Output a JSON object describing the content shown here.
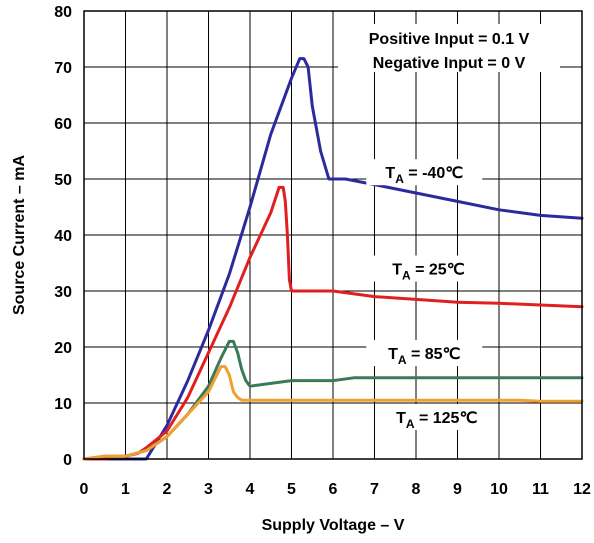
{
  "chart_data": {
    "type": "line",
    "xlabel": "Supply Voltage – V",
    "ylabel": "Source Current – mA",
    "xlim": [
      0,
      12
    ],
    "ylim": [
      0,
      80
    ],
    "xticks": [
      0,
      1,
      2,
      3,
      4,
      5,
      6,
      7,
      8,
      9,
      10,
      11,
      12
    ],
    "yticks": [
      0,
      10,
      20,
      30,
      40,
      50,
      60,
      70,
      80
    ],
    "grid": true,
    "annotations": [
      "Positive Input = 0.1 V",
      "Negative Input = 0 V"
    ],
    "series": [
      {
        "label_main": "T",
        "label_sub": "A",
        "label_rest": " = -40℃",
        "color": "#2b2b9e",
        "x": [
          0,
          0.5,
          1.0,
          1.3,
          1.5,
          2.0,
          2.5,
          3.0,
          3.5,
          4.0,
          4.5,
          5.0,
          5.2,
          5.3,
          5.4,
          5.5,
          5.7,
          5.9,
          6.0,
          6.3,
          7,
          8,
          9,
          10,
          11,
          12
        ],
        "y": [
          0,
          0,
          0,
          0,
          0,
          6,
          14,
          23,
          33,
          45,
          58,
          68,
          71.5,
          71.5,
          70,
          63,
          55,
          50,
          50,
          50,
          49,
          47.5,
          46,
          44.5,
          43.5,
          43
        ]
      },
      {
        "label_main": "T",
        "label_sub": "A",
        "label_rest": " = 25℃",
        "color": "#e02020",
        "x": [
          0,
          0.5,
          1.0,
          1.3,
          1.5,
          2.0,
          2.5,
          3.0,
          3.5,
          4.0,
          4.5,
          4.7,
          4.8,
          4.85,
          4.9,
          4.95,
          5.0,
          5.5,
          6,
          7,
          8,
          9,
          10,
          11,
          12
        ],
        "y": [
          0,
          0,
          0.5,
          1,
          2,
          5,
          11,
          19,
          27,
          36,
          44,
          48.5,
          48.5,
          46,
          40,
          32,
          30,
          30,
          30,
          29,
          28.5,
          28,
          27.8,
          27.5,
          27.2
        ]
      },
      {
        "label_main": "T",
        "label_sub": "A",
        "label_rest": " = 85℃",
        "color": "#3a7a5a",
        "x": [
          0,
          0.5,
          1.0,
          1.5,
          2.0,
          2.5,
          3.0,
          3.3,
          3.5,
          3.6,
          3.7,
          3.8,
          3.9,
          4.0,
          4.5,
          5.0,
          6.0,
          6.5,
          7,
          8,
          9,
          10,
          11,
          12
        ],
        "y": [
          0,
          0.5,
          0.5,
          1.5,
          4,
          8,
          13,
          18,
          21,
          21,
          19,
          16,
          14,
          13,
          13.5,
          14,
          14,
          14.5,
          14.5,
          14.5,
          14.5,
          14.5,
          14.5,
          14.5
        ]
      },
      {
        "label_main": "T",
        "label_sub": "A",
        "label_rest": " = 125℃",
        "color": "#f0a030",
        "x": [
          0,
          0.5,
          1.0,
          1.5,
          2.0,
          2.5,
          3.0,
          3.2,
          3.3,
          3.4,
          3.5,
          3.6,
          3.7,
          3.8,
          4.0,
          5,
          6,
          7,
          8,
          9,
          10,
          10.5,
          11,
          12
        ],
        "y": [
          0,
          0.5,
          0.5,
          1.5,
          4,
          8,
          12,
          15,
          16.5,
          16.5,
          15,
          12,
          11,
          10.5,
          10.5,
          10.5,
          10.5,
          10.5,
          10.5,
          10.5,
          10.5,
          10.5,
          10.3,
          10.3
        ]
      }
    ]
  }
}
